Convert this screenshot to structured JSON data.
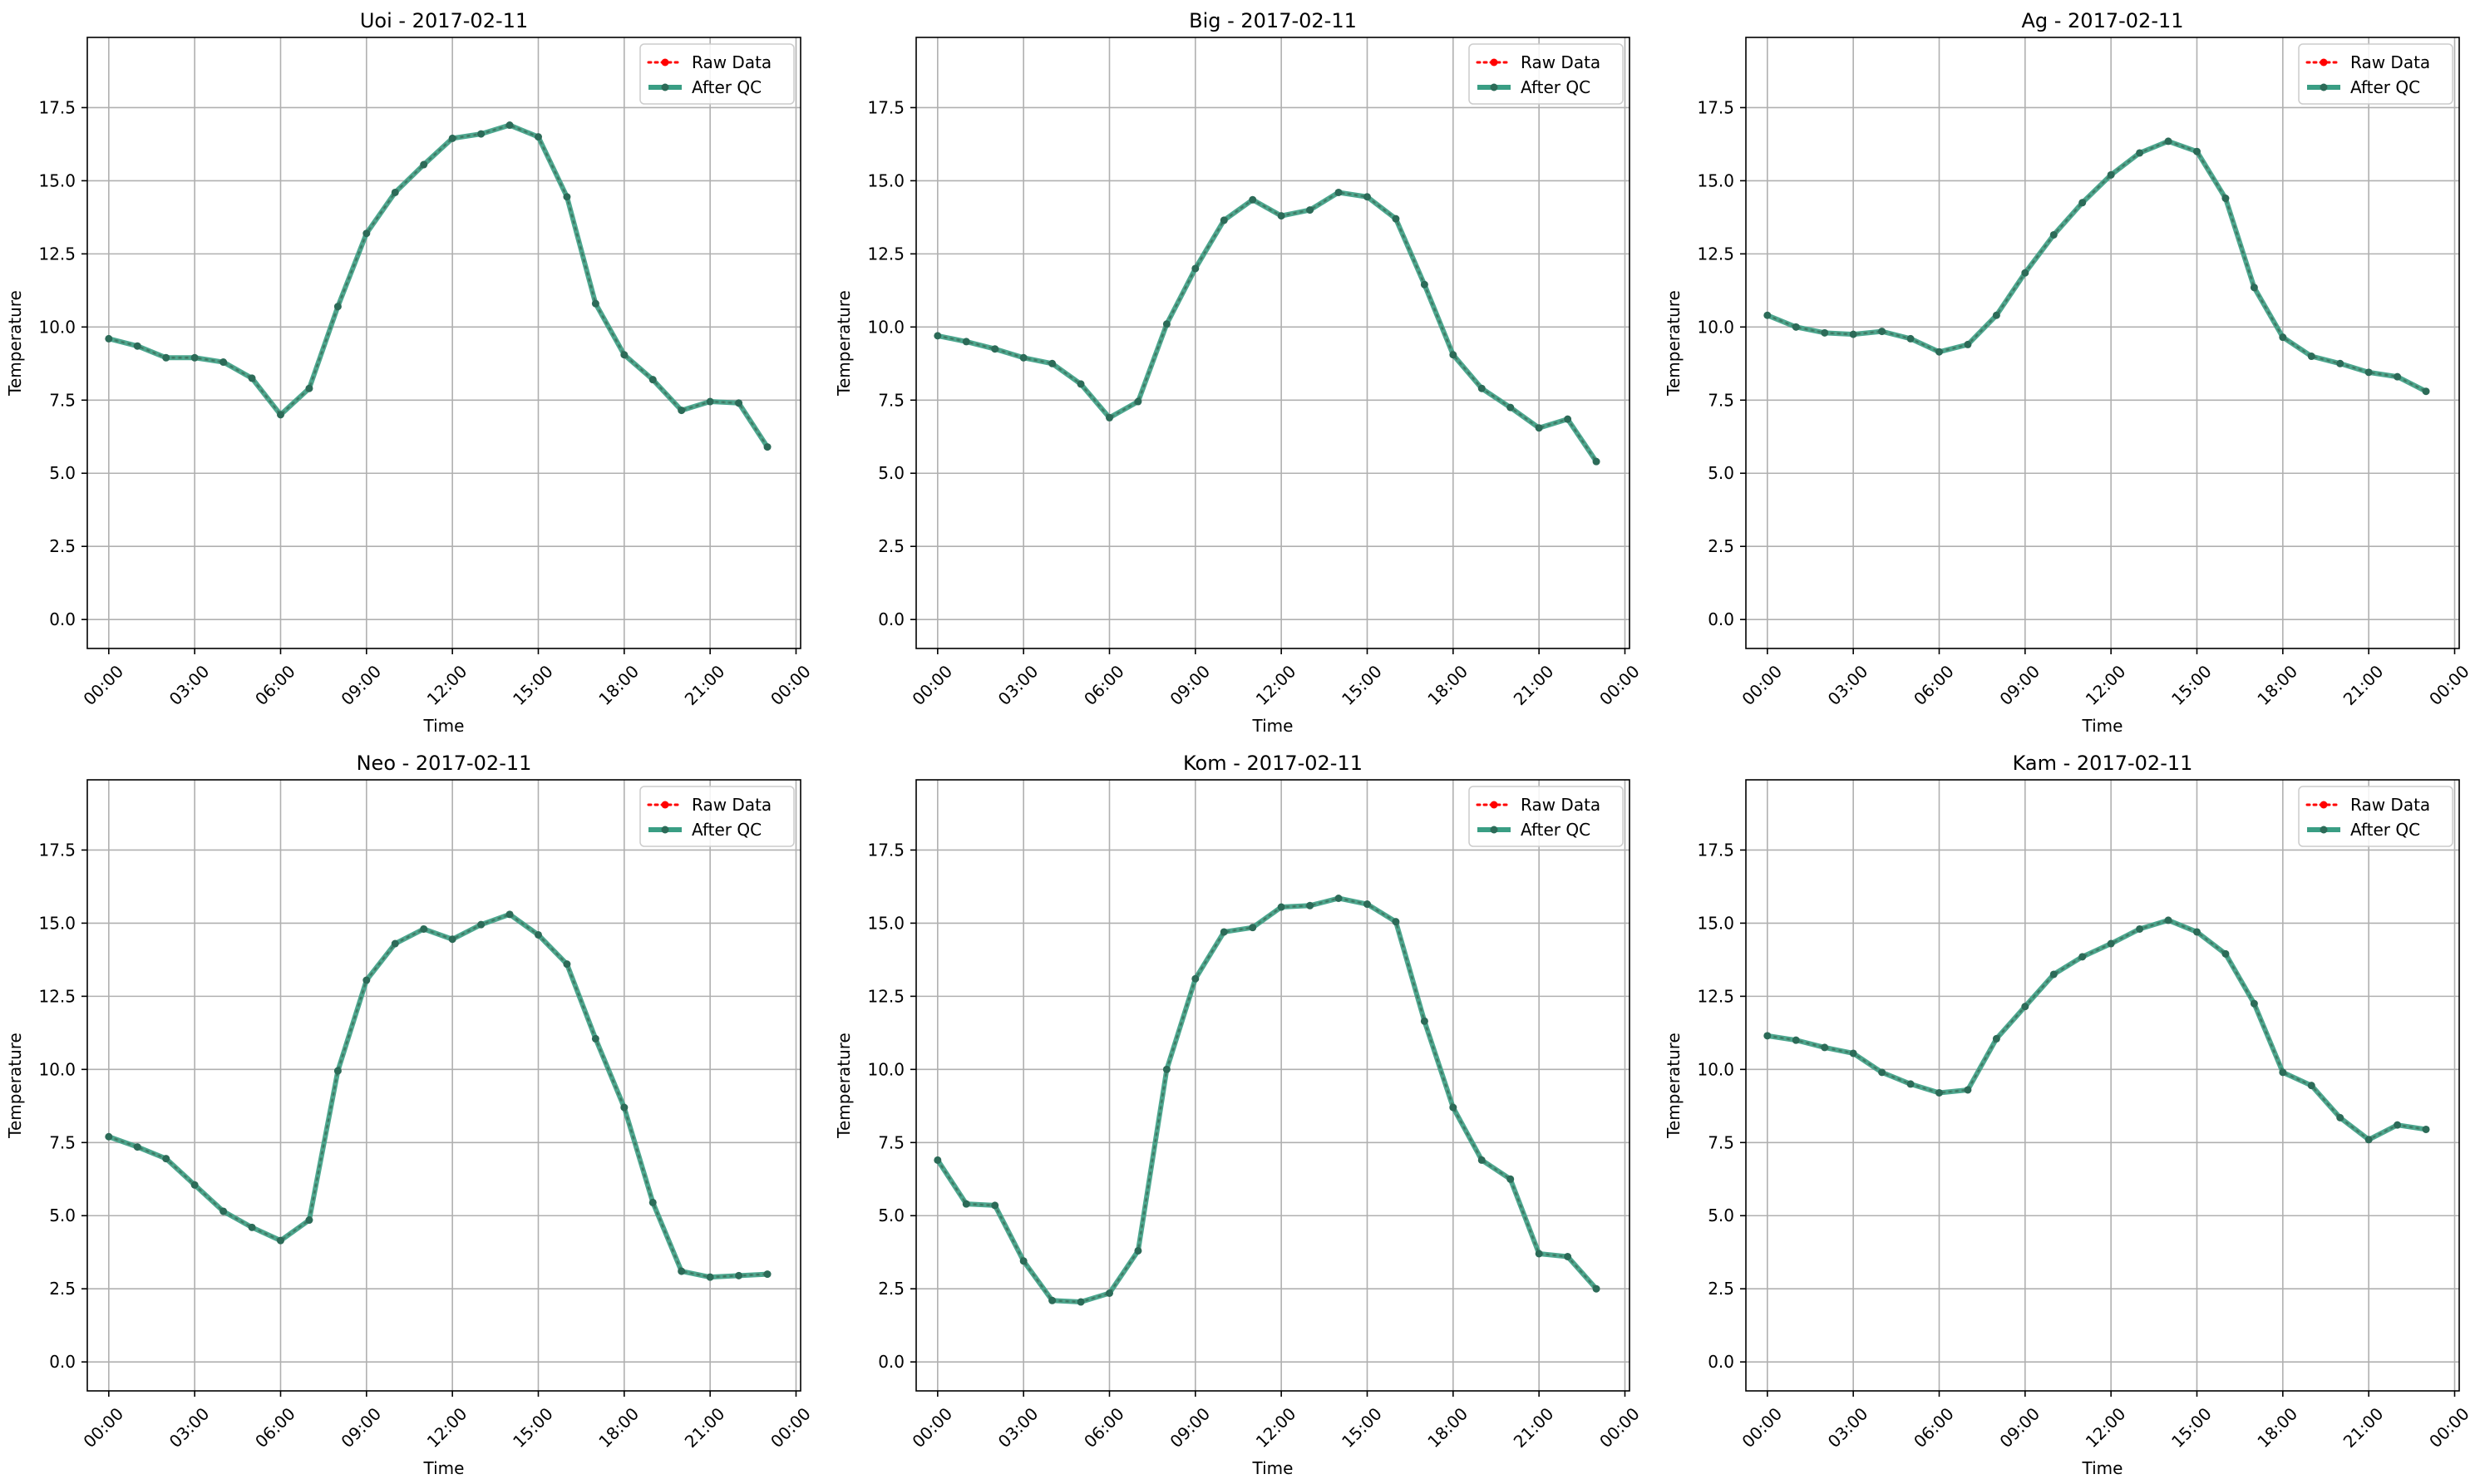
{
  "figure": {
    "background": "#ffffff"
  },
  "style": {
    "raw_color": "#ff0000",
    "qc_color": "#3a9e84",
    "marker_color": "#2c6b58",
    "grid_color": "#b0b0b0"
  },
  "chart_data": [
    {
      "type": "line",
      "title": "Uoi - 2017-02-11",
      "xlabel": "Time",
      "ylabel": "Temperature",
      "xlim": [
        -0.75,
        24.16
      ],
      "ylim": [
        -0.99,
        19.9
      ],
      "xticks": [
        0,
        3,
        6,
        9,
        12,
        15,
        18,
        21,
        24
      ],
      "xtick_labels": [
        "00:00",
        "03:00",
        "06:00",
        "09:00",
        "12:00",
        "15:00",
        "18:00",
        "21:00",
        "00:00"
      ],
      "yticks": [
        0,
        2.5,
        5,
        7.5,
        10,
        12.5,
        15,
        17.5
      ],
      "ytick_labels": [
        "0.0",
        "2.5",
        "5.0",
        "7.5",
        "10.0",
        "12.5",
        "15.0",
        "17.5"
      ],
      "grid": true,
      "legend": "top-right",
      "x": [
        0,
        1,
        2,
        3,
        4,
        5,
        6,
        7,
        8,
        9,
        10,
        11,
        12,
        13,
        14,
        15,
        16,
        17,
        18,
        19,
        20,
        21,
        22,
        23
      ],
      "series": [
        {
          "name": "Raw Data",
          "values": [
            9.6,
            9.35,
            8.95,
            8.95,
            8.8,
            8.25,
            7.0,
            7.9,
            10.7,
            13.2,
            14.6,
            15.55,
            16.45,
            16.6,
            16.9,
            16.5,
            14.45,
            10.8,
            9.05,
            8.2,
            7.15,
            7.45,
            7.4,
            5.9
          ]
        },
        {
          "name": "After QC",
          "values": [
            9.6,
            9.35,
            8.95,
            8.95,
            8.8,
            8.25,
            7.0,
            7.9,
            10.7,
            13.2,
            14.6,
            15.55,
            16.45,
            16.6,
            16.9,
            16.5,
            14.45,
            10.8,
            9.05,
            8.2,
            7.15,
            7.45,
            7.4,
            5.9
          ]
        }
      ]
    },
    {
      "type": "line",
      "title": "Big - 2017-02-11",
      "xlabel": "Time",
      "ylabel": "Temperature",
      "xlim": [
        -0.75,
        24.16
      ],
      "ylim": [
        -0.99,
        19.9
      ],
      "xticks": [
        0,
        3,
        6,
        9,
        12,
        15,
        18,
        21,
        24
      ],
      "xtick_labels": [
        "00:00",
        "03:00",
        "06:00",
        "09:00",
        "12:00",
        "15:00",
        "18:00",
        "21:00",
        "00:00"
      ],
      "yticks": [
        0,
        2.5,
        5,
        7.5,
        10,
        12.5,
        15,
        17.5
      ],
      "ytick_labels": [
        "0.0",
        "2.5",
        "5.0",
        "7.5",
        "10.0",
        "12.5",
        "15.0",
        "17.5"
      ],
      "grid": true,
      "legend": "top-right",
      "x": [
        0,
        1,
        2,
        3,
        4,
        5,
        6,
        7,
        8,
        9,
        10,
        11,
        12,
        13,
        14,
        15,
        16,
        17,
        18,
        19,
        20,
        21,
        22,
        23
      ],
      "series": [
        {
          "name": "Raw Data",
          "values": [
            9.7,
            9.5,
            9.25,
            8.95,
            8.75,
            8.05,
            6.9,
            7.45,
            10.1,
            12.0,
            13.65,
            14.35,
            13.8,
            14.0,
            14.6,
            14.45,
            13.7,
            11.45,
            9.05,
            7.9,
            7.25,
            6.55,
            6.85,
            5.4
          ]
        },
        {
          "name": "After QC",
          "values": [
            9.7,
            9.5,
            9.25,
            8.95,
            8.75,
            8.05,
            6.9,
            7.45,
            10.1,
            12.0,
            13.65,
            14.35,
            13.8,
            14.0,
            14.6,
            14.45,
            13.7,
            11.45,
            9.05,
            7.9,
            7.25,
            6.55,
            6.85,
            5.4
          ]
        }
      ]
    },
    {
      "type": "line",
      "title": "Ag - 2017-02-11",
      "xlabel": "Time",
      "ylabel": "Temperature",
      "xlim": [
        -0.75,
        24.16
      ],
      "ylim": [
        -0.99,
        19.9
      ],
      "xticks": [
        0,
        3,
        6,
        9,
        12,
        15,
        18,
        21,
        24
      ],
      "xtick_labels": [
        "00:00",
        "03:00",
        "06:00",
        "09:00",
        "12:00",
        "15:00",
        "18:00",
        "21:00",
        "00:00"
      ],
      "yticks": [
        0,
        2.5,
        5,
        7.5,
        10,
        12.5,
        15,
        17.5
      ],
      "ytick_labels": [
        "0.0",
        "2.5",
        "5.0",
        "7.5",
        "10.0",
        "12.5",
        "15.0",
        "17.5"
      ],
      "grid": true,
      "legend": "top-right",
      "x": [
        0,
        1,
        2,
        3,
        4,
        5,
        6,
        7,
        8,
        9,
        10,
        11,
        12,
        13,
        14,
        15,
        16,
        17,
        18,
        19,
        20,
        21,
        22,
        23
      ],
      "series": [
        {
          "name": "Raw Data",
          "values": [
            10.4,
            10.0,
            9.8,
            9.75,
            9.85,
            9.6,
            9.15,
            9.4,
            10.4,
            11.85,
            13.15,
            14.25,
            15.2,
            15.95,
            16.35,
            16.0,
            14.4,
            11.35,
            9.65,
            9.0,
            8.75,
            8.45,
            8.3,
            7.8
          ]
        },
        {
          "name": "After QC",
          "values": [
            10.4,
            10.0,
            9.8,
            9.75,
            9.85,
            9.6,
            9.15,
            9.4,
            10.4,
            11.85,
            13.15,
            14.25,
            15.2,
            15.95,
            16.35,
            16.0,
            14.4,
            11.35,
            9.65,
            9.0,
            8.75,
            8.45,
            8.3,
            7.8
          ]
        }
      ]
    },
    {
      "type": "line",
      "title": "Neo - 2017-02-11",
      "xlabel": "Time",
      "ylabel": "Temperature",
      "xlim": [
        -0.75,
        24.16
      ],
      "ylim": [
        -0.99,
        19.9
      ],
      "xticks": [
        0,
        3,
        6,
        9,
        12,
        15,
        18,
        21,
        24
      ],
      "xtick_labels": [
        "00:00",
        "03:00",
        "06:00",
        "09:00",
        "12:00",
        "15:00",
        "18:00",
        "21:00",
        "00:00"
      ],
      "yticks": [
        0,
        2.5,
        5,
        7.5,
        10,
        12.5,
        15,
        17.5
      ],
      "ytick_labels": [
        "0.0",
        "2.5",
        "5.0",
        "7.5",
        "10.0",
        "12.5",
        "15.0",
        "17.5"
      ],
      "grid": true,
      "legend": "top-right",
      "x": [
        0,
        1,
        2,
        3,
        4,
        5,
        6,
        7,
        8,
        9,
        10,
        11,
        12,
        13,
        14,
        15,
        16,
        17,
        18,
        19,
        20,
        21,
        22,
        23
      ],
      "series": [
        {
          "name": "Raw Data",
          "values": [
            7.7,
            7.35,
            6.95,
            6.05,
            5.15,
            4.6,
            4.15,
            4.85,
            9.95,
            13.05,
            14.3,
            14.8,
            14.45,
            14.95,
            15.3,
            14.6,
            13.6,
            11.05,
            8.7,
            5.45,
            3.1,
            2.9,
            2.95,
            3.0
          ]
        },
        {
          "name": "After QC",
          "values": [
            7.7,
            7.35,
            6.95,
            6.05,
            5.15,
            4.6,
            4.15,
            4.85,
            9.95,
            13.05,
            14.3,
            14.8,
            14.45,
            14.95,
            15.3,
            14.6,
            13.6,
            11.05,
            8.7,
            5.45,
            3.1,
            2.9,
            2.95,
            3.0
          ]
        }
      ]
    },
    {
      "type": "line",
      "title": "Kom - 2017-02-11",
      "xlabel": "Time",
      "ylabel": "Temperature",
      "xlim": [
        -0.75,
        24.16
      ],
      "ylim": [
        -0.99,
        19.9
      ],
      "xticks": [
        0,
        3,
        6,
        9,
        12,
        15,
        18,
        21,
        24
      ],
      "xtick_labels": [
        "00:00",
        "03:00",
        "06:00",
        "09:00",
        "12:00",
        "15:00",
        "18:00",
        "21:00",
        "00:00"
      ],
      "yticks": [
        0,
        2.5,
        5,
        7.5,
        10,
        12.5,
        15,
        17.5
      ],
      "ytick_labels": [
        "0.0",
        "2.5",
        "5.0",
        "7.5",
        "10.0",
        "12.5",
        "15.0",
        "17.5"
      ],
      "grid": true,
      "legend": "top-right",
      "x": [
        0,
        1,
        2,
        3,
        4,
        5,
        6,
        7,
        8,
        9,
        10,
        11,
        12,
        13,
        14,
        15,
        16,
        17,
        18,
        19,
        20,
        21,
        22,
        23
      ],
      "series": [
        {
          "name": "Raw Data",
          "values": [
            6.9,
            5.4,
            5.35,
            3.45,
            2.1,
            2.05,
            2.35,
            3.8,
            10.0,
            13.1,
            14.7,
            14.85,
            15.55,
            15.6,
            15.85,
            15.65,
            15.05,
            11.65,
            8.7,
            6.9,
            6.25,
            3.7,
            3.6,
            2.5
          ]
        },
        {
          "name": "After QC",
          "values": [
            6.9,
            5.4,
            5.35,
            3.45,
            2.1,
            2.05,
            2.35,
            3.8,
            10.0,
            13.1,
            14.7,
            14.85,
            15.55,
            15.6,
            15.85,
            15.65,
            15.05,
            11.65,
            8.7,
            6.9,
            6.25,
            3.7,
            3.6,
            2.5
          ]
        }
      ]
    },
    {
      "type": "line",
      "title": "Kam - 2017-02-11",
      "xlabel": "Time",
      "ylabel": "Temperature",
      "xlim": [
        -0.75,
        24.16
      ],
      "ylim": [
        -0.99,
        19.9
      ],
      "xticks": [
        0,
        3,
        6,
        9,
        12,
        15,
        18,
        21,
        24
      ],
      "xtick_labels": [
        "00:00",
        "03:00",
        "06:00",
        "09:00",
        "12:00",
        "15:00",
        "18:00",
        "21:00",
        "00:00"
      ],
      "yticks": [
        0,
        2.5,
        5,
        7.5,
        10,
        12.5,
        15,
        17.5
      ],
      "ytick_labels": [
        "0.0",
        "2.5",
        "5.0",
        "7.5",
        "10.0",
        "12.5",
        "15.0",
        "17.5"
      ],
      "grid": true,
      "legend": "top-right",
      "x": [
        0,
        1,
        2,
        3,
        4,
        5,
        6,
        7,
        8,
        9,
        10,
        11,
        12,
        13,
        14,
        15,
        16,
        17,
        18,
        19,
        20,
        21,
        22,
        23
      ],
      "series": [
        {
          "name": "Raw Data",
          "values": [
            11.15,
            11.0,
            10.75,
            10.55,
            9.9,
            9.5,
            9.2,
            9.3,
            11.05,
            12.15,
            13.25,
            13.85,
            14.3,
            14.8,
            15.1,
            14.7,
            13.95,
            12.25,
            9.9,
            9.45,
            8.35,
            7.6,
            8.1,
            7.95
          ]
        },
        {
          "name": "After QC",
          "values": [
            11.15,
            11.0,
            10.75,
            10.55,
            9.9,
            9.5,
            9.2,
            9.3,
            11.05,
            12.15,
            13.25,
            13.85,
            14.3,
            14.8,
            15.1,
            14.7,
            13.95,
            12.25,
            9.9,
            9.45,
            8.35,
            7.6,
            8.1,
            7.95
          ]
        }
      ]
    }
  ]
}
